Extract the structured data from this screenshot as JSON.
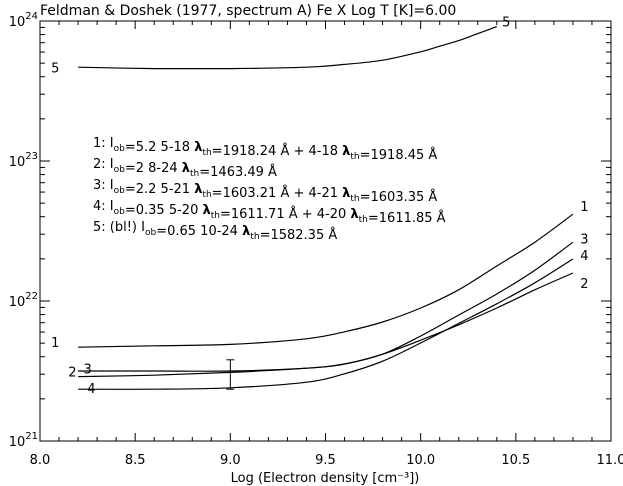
{
  "chart_data": {
    "type": "line",
    "title": "Feldman & Doshek (1977, spectrum A) Fe X  Log T [K]=6.00",
    "xlabel": "Log (Electron density [cm⁻³])",
    "ylabel": "",
    "xlim": [
      8.0,
      11.0
    ],
    "ylim_log10": [
      21.0,
      24.0
    ],
    "y_scale": "log",
    "x_ticks": [
      "8.0",
      "8.5",
      "9.0",
      "9.5",
      "10.0",
      "10.5",
      "11.0"
    ],
    "y_ticks": [
      {
        "base": "10",
        "exp": "21",
        "log10": 21
      },
      {
        "base": "10",
        "exp": "22",
        "log10": 22
      },
      {
        "base": "10",
        "exp": "23",
        "log10": 23
      },
      {
        "base": "10",
        "exp": "24",
        "log10": 24
      }
    ],
    "grid": false,
    "series": [
      {
        "name": "1",
        "x": [
          8.2,
          8.6,
          9.0,
          9.4,
          9.6,
          9.8,
          10.0,
          10.2,
          10.4,
          10.6,
          10.8
        ],
        "log10_y": [
          21.67,
          21.68,
          21.69,
          21.73,
          21.78,
          21.85,
          21.95,
          22.08,
          22.25,
          22.42,
          22.62
        ]
      },
      {
        "name": "2",
        "x": [
          8.2,
          8.6,
          9.0,
          9.4,
          9.6,
          9.8,
          10.0,
          10.2,
          10.4,
          10.6,
          10.8
        ],
        "log10_y": [
          21.46,
          21.47,
          21.49,
          21.52,
          21.55,
          21.62,
          21.72,
          21.83,
          21.95,
          22.08,
          22.2
        ]
      },
      {
        "name": "3",
        "x": [
          8.2,
          8.6,
          9.0,
          9.4,
          9.6,
          9.8,
          10.0,
          10.2,
          10.4,
          10.6,
          10.8
        ],
        "log10_y": [
          21.5,
          21.5,
          21.5,
          21.52,
          21.55,
          21.62,
          21.75,
          21.9,
          22.05,
          22.22,
          22.42
        ]
      },
      {
        "name": "4",
        "x": [
          8.2,
          8.6,
          9.0,
          9.4,
          9.6,
          9.8,
          10.0,
          10.2,
          10.4,
          10.6,
          10.8
        ],
        "log10_y": [
          21.37,
          21.37,
          21.38,
          21.42,
          21.48,
          21.57,
          21.7,
          21.84,
          21.98,
          22.13,
          22.3
        ]
      },
      {
        "name": "5",
        "x": [
          8.2,
          8.6,
          9.0,
          9.4,
          9.6,
          9.8,
          10.0,
          10.1,
          10.2,
          10.3,
          10.4
        ],
        "log10_y": [
          23.67,
          23.66,
          23.66,
          23.67,
          23.69,
          23.72,
          23.78,
          23.82,
          23.86,
          23.91,
          23.96
        ]
      }
    ],
    "curve_labels": [
      {
        "text": "1",
        "x": 8.08,
        "log10_y": 21.7
      },
      {
        "text": "2",
        "x": 8.17,
        "log10_y": 21.49
      },
      {
        "text": "3",
        "x": 8.25,
        "log10_y": 21.51
      },
      {
        "text": "4",
        "x": 8.27,
        "log10_y": 21.37
      },
      {
        "text": "5",
        "x": 8.08,
        "log10_y": 23.66
      },
      {
        "text": "1",
        "x": 10.86,
        "log10_y": 22.67
      },
      {
        "text": "3",
        "x": 10.86,
        "log10_y": 22.44
      },
      {
        "text": "4",
        "x": 10.86,
        "log10_y": 22.32
      },
      {
        "text": "2",
        "x": 10.86,
        "log10_y": 22.12
      },
      {
        "text": "5",
        "x": 10.45,
        "log10_y": 23.99
      }
    ],
    "error_bar": {
      "x": 9.0,
      "log10_y_low": 21.37,
      "log10_y_high": 21.58
    },
    "annotations": [
      [
        {
          "t": "1: I",
          "b": false
        },
        {
          "t": "ob",
          "sub": true
        },
        {
          "t": "=5.2   5-18 ",
          "b": false
        },
        {
          "t": "λ",
          "b": true
        },
        {
          "t": "th",
          "sub": true
        },
        {
          "t": "=1918.24 Å + 4-18 ",
          "b": false
        },
        {
          "t": "λ",
          "b": true
        },
        {
          "t": "th",
          "sub": true
        },
        {
          "t": "=1918.45 Å",
          "b": false
        }
      ],
      [
        {
          "t": "2: I",
          "b": false
        },
        {
          "t": "ob",
          "sub": true
        },
        {
          "t": "=2  8-24 ",
          "b": false
        },
        {
          "t": "λ",
          "b": true
        },
        {
          "t": "th",
          "sub": true
        },
        {
          "t": "=1463.49 Å",
          "b": false
        }
      ],
      [
        {
          "t": "3: I",
          "b": false
        },
        {
          "t": "ob",
          "sub": true
        },
        {
          "t": "=2.2   5-21 ",
          "b": false
        },
        {
          "t": "λ",
          "b": true
        },
        {
          "t": "th",
          "sub": true
        },
        {
          "t": "=1603.21 Å + 4-21 ",
          "b": false
        },
        {
          "t": "λ",
          "b": true
        },
        {
          "t": "th",
          "sub": true
        },
        {
          "t": "=1603.35 Å",
          "b": false
        }
      ],
      [
        {
          "t": "4: I",
          "b": false
        },
        {
          "t": "ob",
          "sub": true
        },
        {
          "t": "=0.35   5-20 ",
          "b": false
        },
        {
          "t": "λ",
          "b": true
        },
        {
          "t": "th",
          "sub": true
        },
        {
          "t": "=1611.71 Å + 4-20 ",
          "b": false
        },
        {
          "t": "λ",
          "b": true
        },
        {
          "t": "th",
          "sub": true
        },
        {
          "t": "=1611.85 Å",
          "b": false
        }
      ],
      [
        {
          "t": "5: (bl!) I",
          "b": false
        },
        {
          "t": "ob",
          "sub": true
        },
        {
          "t": "=0.65  10-24 ",
          "b": false
        },
        {
          "t": "λ",
          "b": true
        },
        {
          "t": "th",
          "sub": true
        },
        {
          "t": "=1582.35 Å",
          "b": false
        }
      ]
    ]
  }
}
